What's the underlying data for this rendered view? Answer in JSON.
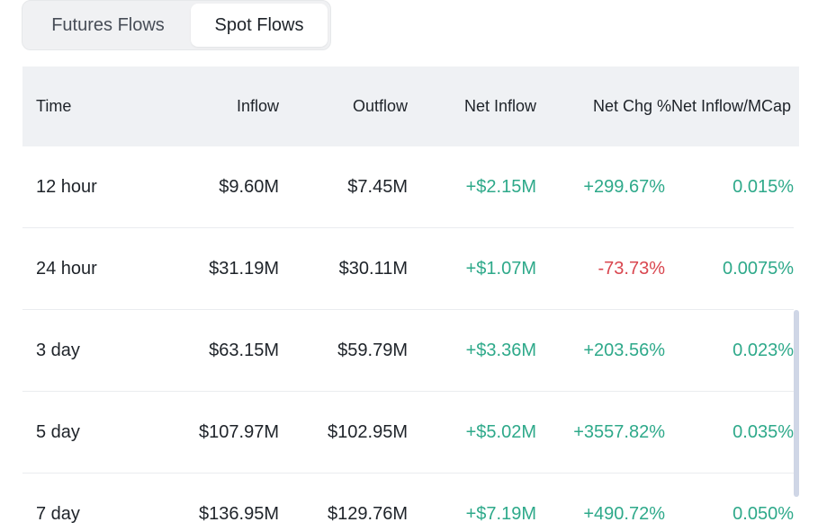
{
  "tabs": [
    {
      "label": "Futures Flows",
      "active": false
    },
    {
      "label": "Spot Flows",
      "active": true
    }
  ],
  "table": {
    "headers": {
      "time": "Time",
      "inflow": "Inflow",
      "outflow": "Outflow",
      "net_inflow": "Net Inflow",
      "net_chg": "Net Chg %",
      "net_inflow_mcap": "Net Inflow/MCap"
    },
    "rows": [
      {
        "time": "12 hour",
        "inflow": "$9.60M",
        "outflow": "$7.45M",
        "net_inflow": "+$2.15M",
        "net_chg": "+299.67%",
        "net_inflow_mcap": "0.015%"
      },
      {
        "time": "24 hour",
        "inflow": "$31.19M",
        "outflow": "$30.11M",
        "net_inflow": "+$1.07M",
        "net_chg": "-73.73%",
        "net_inflow_mcap": "0.0075%"
      },
      {
        "time": "3 day",
        "inflow": "$63.15M",
        "outflow": "$59.79M",
        "net_inflow": "+$3.36M",
        "net_chg": "+203.56%",
        "net_inflow_mcap": "0.023%"
      },
      {
        "time": "5 day",
        "inflow": "$107.97M",
        "outflow": "$102.95M",
        "net_inflow": "+$5.02M",
        "net_chg": "+3557.82%",
        "net_inflow_mcap": "0.035%"
      },
      {
        "time": "7 day",
        "inflow": "$136.95M",
        "outflow": "$129.76M",
        "net_inflow": "+$7.19M",
        "net_chg": "+490.72%",
        "net_inflow_mcap": "0.050%"
      }
    ]
  },
  "colors": {
    "positive": "#2ea98a",
    "negative": "#d9464f",
    "header_bg": "#eff1f4"
  }
}
